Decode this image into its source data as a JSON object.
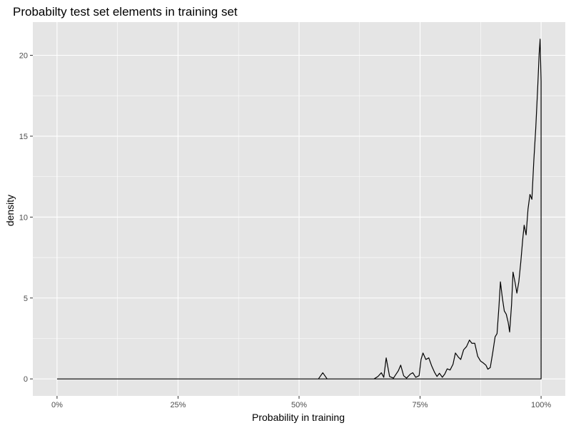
{
  "chart_data": {
    "type": "area",
    "title": "Probabilty test set elements in training set",
    "xlabel": "Probability in training",
    "ylabel": "density",
    "xlim": [
      -0.05,
      1.05
    ],
    "ylim": [
      -1.05,
      22.05
    ],
    "x_ticks": [
      {
        "value": 0,
        "label": "0%"
      },
      {
        "value": 0.25,
        "label": "25%"
      },
      {
        "value": 0.5,
        "label": "50%"
      },
      {
        "value": 0.75,
        "label": "75%"
      },
      {
        "value": 1,
        "label": "100%"
      }
    ],
    "x_minor_ticks": [
      0.125,
      0.375,
      0.625,
      0.875
    ],
    "y_ticks": [
      {
        "value": 0,
        "label": "0"
      },
      {
        "value": 5,
        "label": "5"
      },
      {
        "value": 10,
        "label": "10"
      },
      {
        "value": 15,
        "label": "15"
      },
      {
        "value": 20,
        "label": "20"
      }
    ],
    "y_minor_ticks": [
      2.5,
      7.5,
      12.5,
      17.5
    ],
    "grid": true,
    "colors": {
      "panel": "#e5e5e5",
      "grid": "#ffffff",
      "line": "#000000"
    },
    "series": [
      {
        "values": [
          [
            0,
            0
          ],
          [
            0.5,
            0
          ],
          [
            0.54,
            0
          ],
          [
            0.549,
            0.38
          ],
          [
            0.558,
            0
          ],
          [
            0.655,
            0
          ],
          [
            0.663,
            0.15
          ],
          [
            0.67,
            0.38
          ],
          [
            0.675,
            0.1
          ],
          [
            0.68,
            1.3
          ],
          [
            0.687,
            0.15
          ],
          [
            0.695,
            0.05
          ],
          [
            0.705,
            0.5
          ],
          [
            0.71,
            0.85
          ],
          [
            0.716,
            0.2
          ],
          [
            0.722,
            0.05
          ],
          [
            0.73,
            0.3
          ],
          [
            0.735,
            0.38
          ],
          [
            0.741,
            0.1
          ],
          [
            0.748,
            0.2
          ],
          [
            0.752,
            1.2
          ],
          [
            0.756,
            1.6
          ],
          [
            0.762,
            1.2
          ],
          [
            0.768,
            1.3
          ],
          [
            0.774,
            0.8
          ],
          [
            0.78,
            0.4
          ],
          [
            0.785,
            0.15
          ],
          [
            0.79,
            0.35
          ],
          [
            0.796,
            0.1
          ],
          [
            0.801,
            0.3
          ],
          [
            0.806,
            0.62
          ],
          [
            0.812,
            0.55
          ],
          [
            0.818,
            0.9
          ],
          [
            0.823,
            1.6
          ],
          [
            0.829,
            1.35
          ],
          [
            0.834,
            1.2
          ],
          [
            0.84,
            1.8
          ],
          [
            0.846,
            2.0
          ],
          [
            0.852,
            2.4
          ],
          [
            0.857,
            2.2
          ],
          [
            0.863,
            2.2
          ],
          [
            0.869,
            1.4
          ],
          [
            0.875,
            1.1
          ],
          [
            0.88,
            1.0
          ],
          [
            0.886,
            0.85
          ],
          [
            0.89,
            0.6
          ],
          [
            0.895,
            0.7
          ],
          [
            0.9,
            1.6
          ],
          [
            0.905,
            2.6
          ],
          [
            0.909,
            2.8
          ],
          [
            0.913,
            4.5
          ],
          [
            0.916,
            6.0
          ],
          [
            0.92,
            5.0
          ],
          [
            0.924,
            4.2
          ],
          [
            0.928,
            4.0
          ],
          [
            0.932,
            3.5
          ],
          [
            0.935,
            2.9
          ],
          [
            0.939,
            4.6
          ],
          [
            0.942,
            6.6
          ],
          [
            0.946,
            6.0
          ],
          [
            0.95,
            5.3
          ],
          [
            0.954,
            6.0
          ],
          [
            0.958,
            7.2
          ],
          [
            0.962,
            8.6
          ],
          [
            0.965,
            9.5
          ],
          [
            0.969,
            8.9
          ],
          [
            0.973,
            10.5
          ],
          [
            0.977,
            11.4
          ],
          [
            0.981,
            11.1
          ],
          [
            0.985,
            13.5
          ],
          [
            0.989,
            15.5
          ],
          [
            0.993,
            18.0
          ],
          [
            0.996,
            20.1
          ],
          [
            0.998,
            21.0
          ],
          [
            1.0,
            18.4
          ],
          [
            1.0,
            0
          ],
          [
            0,
            0
          ]
        ]
      }
    ]
  }
}
